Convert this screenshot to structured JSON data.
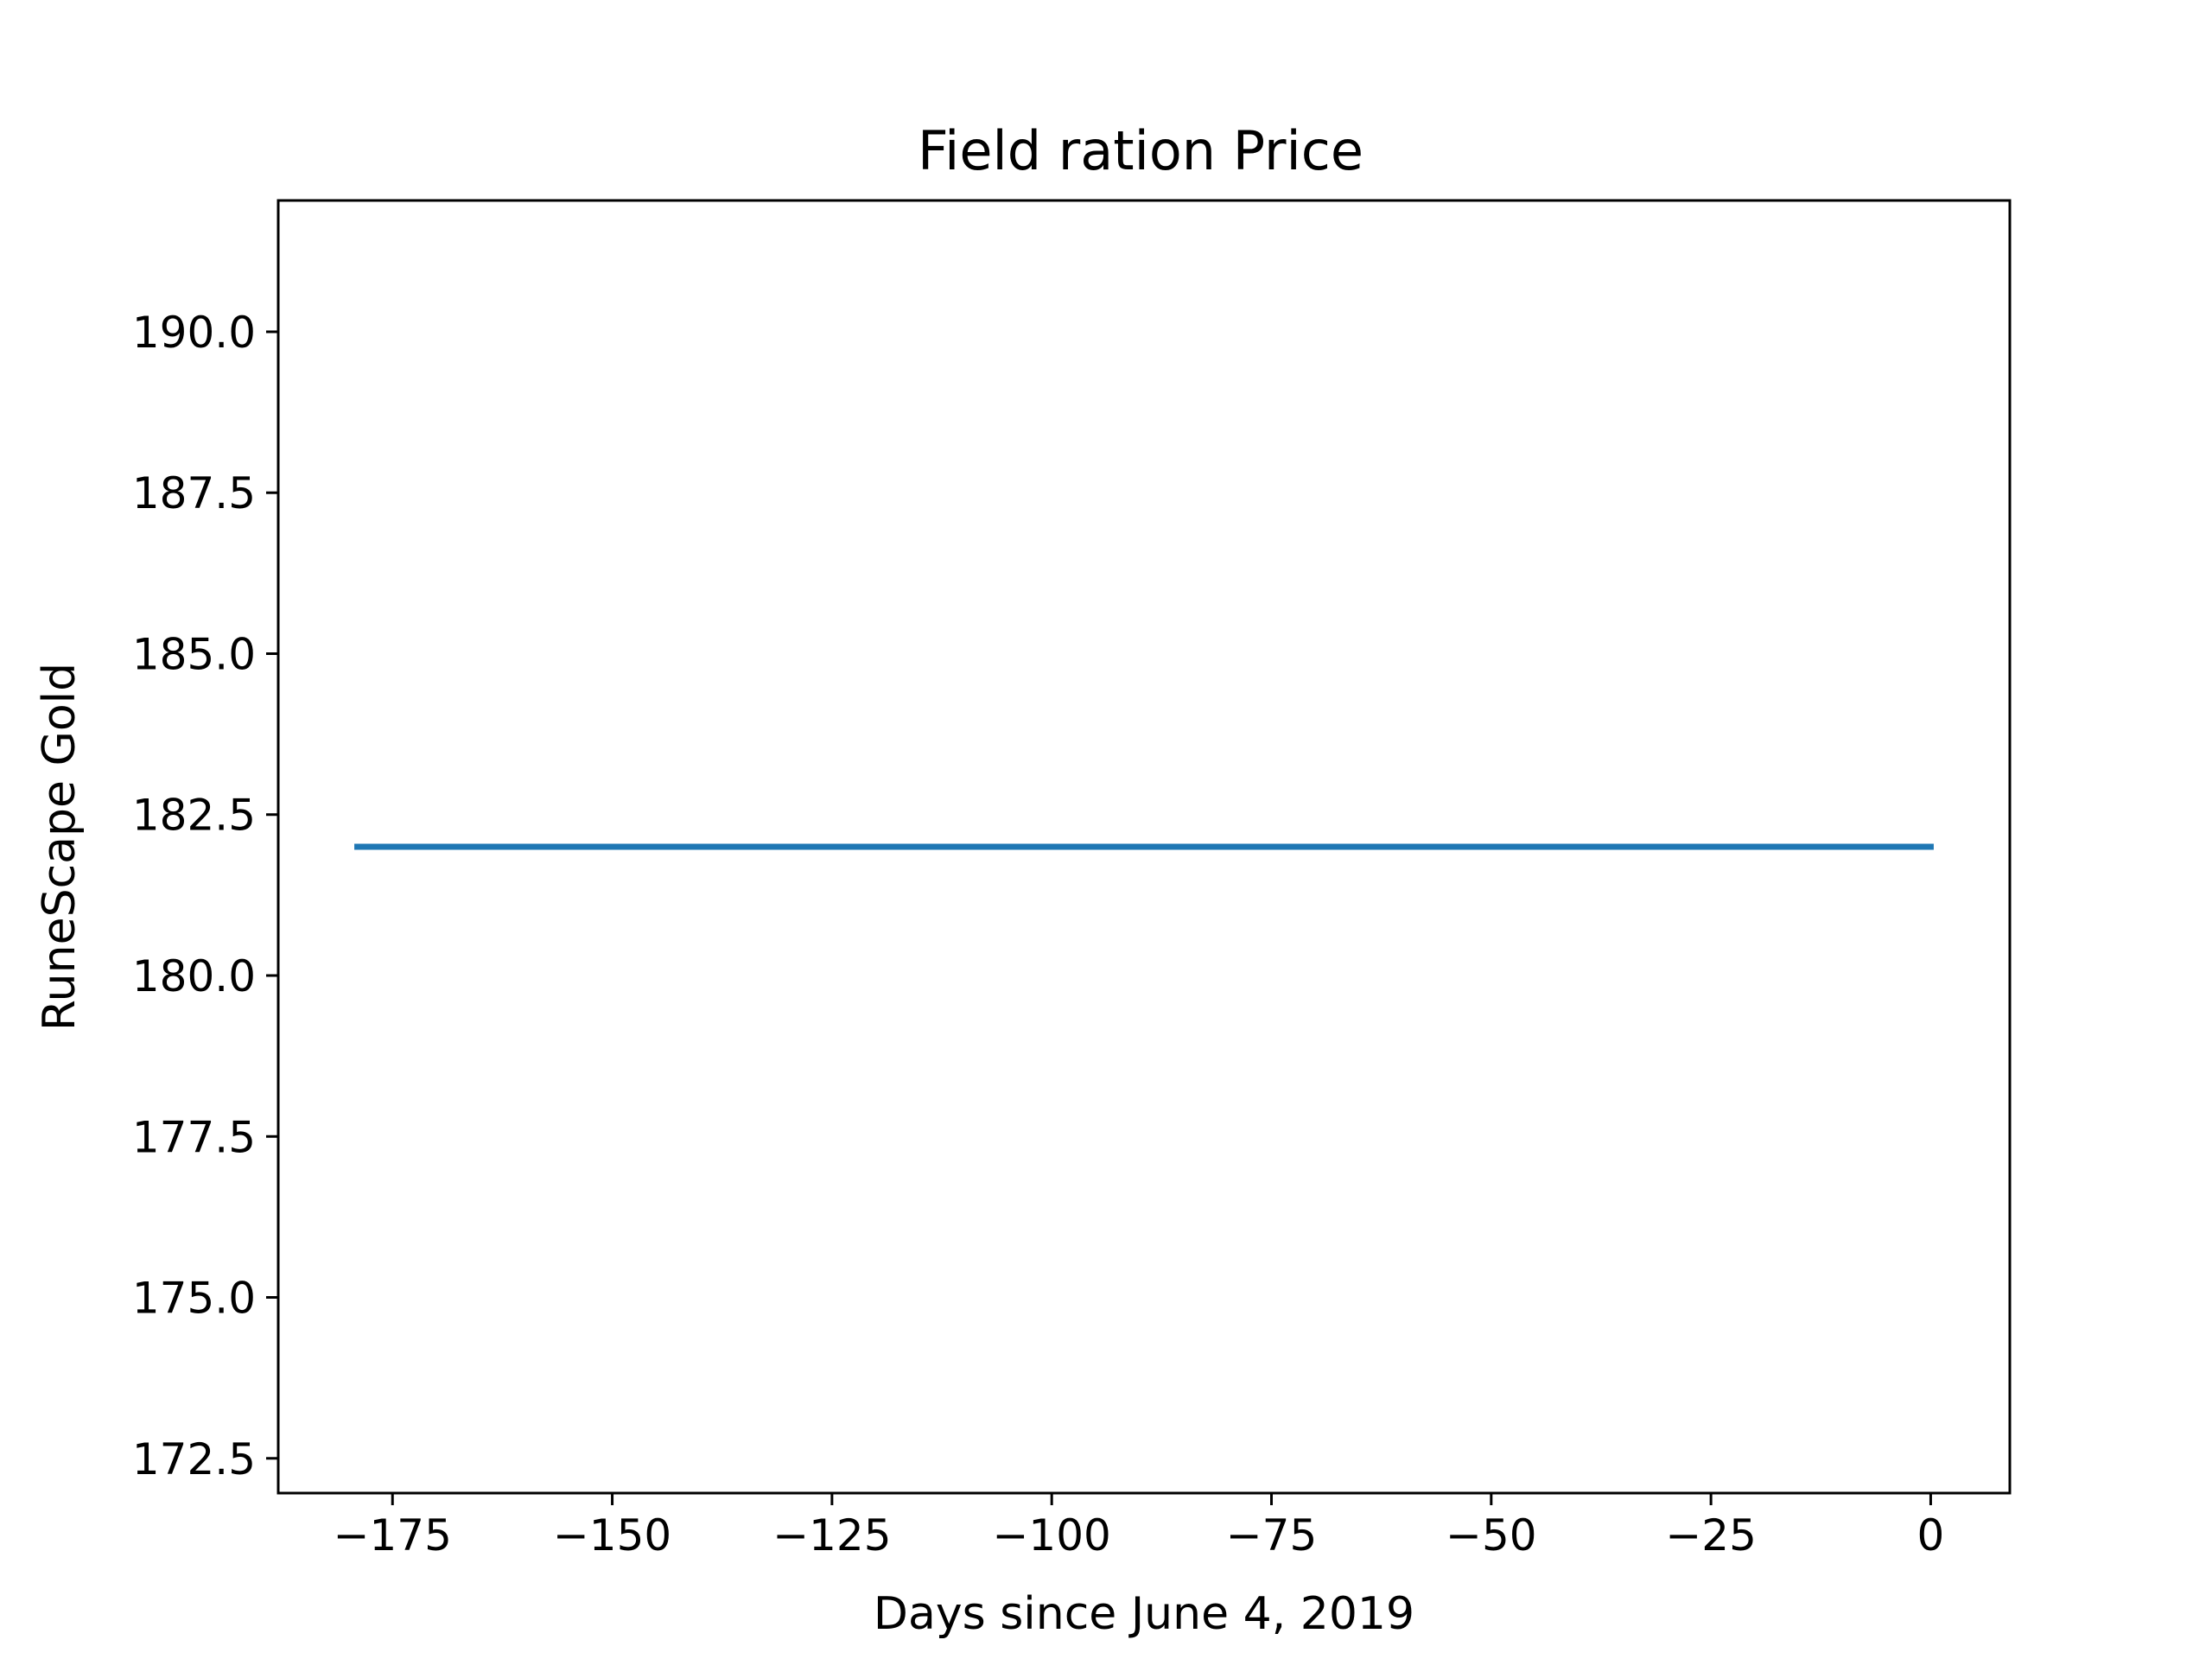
{
  "chart_data": {
    "type": "line",
    "title": "Field ration Price",
    "xlabel": "Days since June 4, 2019",
    "ylabel": "RuneScape Gold",
    "xlim": [
      -188,
      9
    ],
    "ylim": [
      171.96,
      192.04
    ],
    "x_ticks": [
      -175,
      -150,
      -125,
      -100,
      -75,
      -50,
      -25,
      0
    ],
    "x_tick_labels": [
      "−175",
      "−150",
      "−125",
      "−100",
      "−75",
      "−50",
      "−25",
      "0"
    ],
    "y_ticks": [
      172.5,
      175.0,
      177.5,
      180.0,
      182.5,
      185.0,
      187.5,
      190.0
    ],
    "y_tick_labels": [
      "172.5",
      "175.0",
      "177.5",
      "180.0",
      "182.5",
      "185.0",
      "187.5",
      "190.0"
    ],
    "grid": false,
    "series": [
      {
        "color": "#1f77b4",
        "x": [
          -179,
          0
        ],
        "y": [
          182,
          182
        ]
      }
    ]
  }
}
